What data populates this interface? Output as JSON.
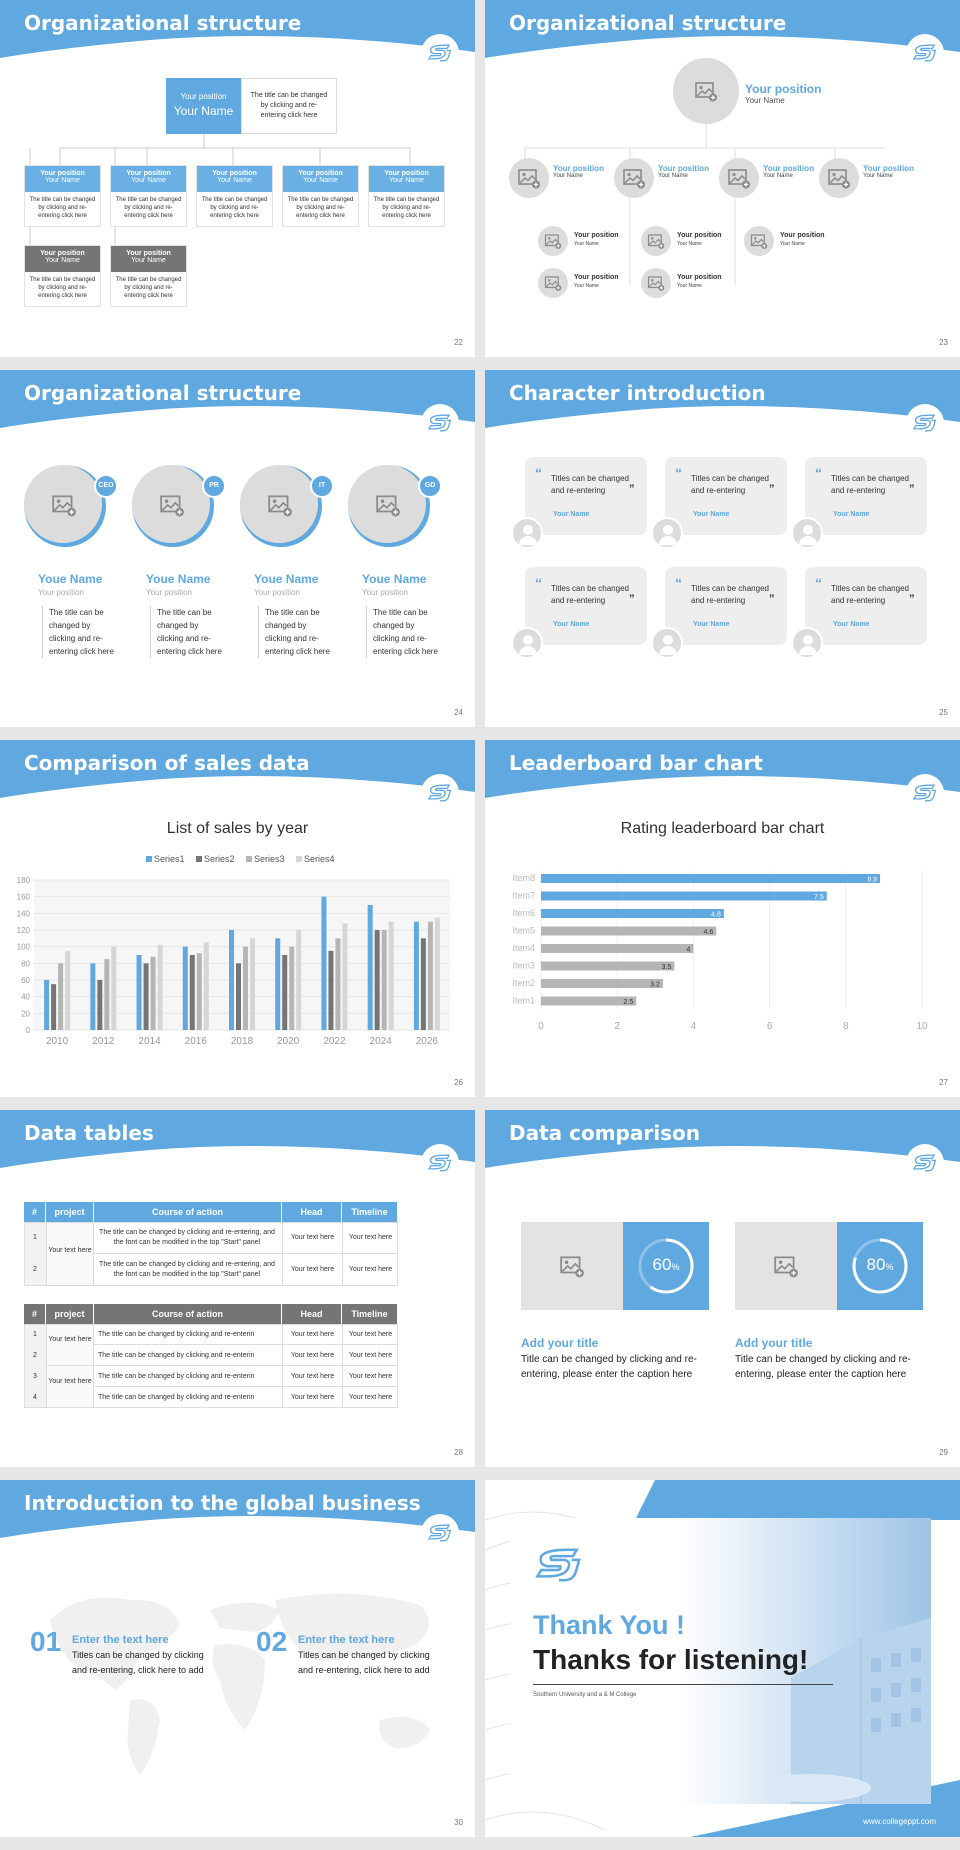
{
  "colors": {
    "accent": "#5fa8e0",
    "gray": "#757575",
    "lightgray": "#dcdcdc"
  },
  "s22": {
    "title": "Organizational structure",
    "num": "22",
    "top": {
      "pos": "Your position",
      "name": "Your Name",
      "desc": "The title can be changed by clicking and re-entering click here"
    },
    "boxes": [
      {
        "pos": "Your position",
        "name": "Your Name",
        "desc": "The title can be changed by clicking and re-entering click here"
      },
      {
        "pos": "Your position",
        "name": "Your Name",
        "desc": "The title can be changed by clicking and re-entering click here"
      },
      {
        "pos": "Your position",
        "name": "Your Name",
        "desc": "The title can be changed by clicking and re-entering click here"
      },
      {
        "pos": "Your position",
        "name": "Your Name",
        "desc": "The title can be changed by clicking and re-entering click here"
      },
      {
        "pos": "Your position",
        "name": "Your Name",
        "desc": "The title can be changed by clicking and re-entering click here"
      },
      {
        "pos": "Your position",
        "name": "Your Name",
        "desc": "The title can be changed by clicking and re-entering click here"
      },
      {
        "pos": "Your position",
        "name": "Your Name",
        "desc": "The title can be changed by clicking and re-entering click here"
      }
    ]
  },
  "s23": {
    "title": "Organizational structure",
    "num": "23",
    "top": {
      "pos": "Your position",
      "name": "Your Name"
    },
    "mid": [
      {
        "pos": "Your position",
        "name": "Your Name"
      },
      {
        "pos": "Your position",
        "name": "Your Name"
      },
      {
        "pos": "Your position",
        "name": "Your Name"
      },
      {
        "pos": "Your position",
        "name": "Your Name"
      }
    ],
    "sub": [
      {
        "pos": "Your position",
        "name": "Your Name"
      },
      {
        "pos": "Your position",
        "name": "Your Name"
      },
      {
        "pos": "Your position",
        "name": "Your Name"
      },
      {
        "pos": "Your position",
        "name": "Your Name"
      },
      {
        "pos": "Your position",
        "name": "Your Name"
      }
    ]
  },
  "s24": {
    "title": "Organizational structure",
    "num": "24",
    "people": [
      {
        "badge": "CEO",
        "name": "Youe Name",
        "pos": "Your position",
        "desc": "The title can be changed by clicking and re-entering click here"
      },
      {
        "badge": "PR",
        "name": "Youe Name",
        "pos": "Your position",
        "desc": "The title can be changed by clicking and re-entering click here"
      },
      {
        "badge": "IT",
        "name": "Youe Name",
        "pos": "Your position",
        "desc": "The title can be changed by clicking and re-entering click here"
      },
      {
        "badge": "GD",
        "name": "Youe Name",
        "pos": "Your position",
        "desc": "The title can be changed by clicking and re-entering click here"
      }
    ]
  },
  "s25": {
    "title": "Character introduction",
    "num": "25",
    "cards": [
      {
        "text": "Titles can be changed and re-entering",
        "name": "Your Name"
      },
      {
        "text": "Titles can be changed and re-entering",
        "name": "Your Name"
      },
      {
        "text": "Titles can be changed and re-entering",
        "name": "Your Name"
      },
      {
        "text": "Titles can be changed and re-entering",
        "name": "Your Name"
      },
      {
        "text": "Titles can be changed and re-entering",
        "name": "Your Name"
      },
      {
        "text": "Titles can be changed and re-entering",
        "name": "Your Name"
      }
    ]
  },
  "s26": {
    "title": "Comparison of sales data",
    "num": "26"
  },
  "s27": {
    "title": "Leaderboard bar chart",
    "num": "27"
  },
  "chart_data": [
    {
      "type": "bar",
      "title": "List of sales by year",
      "categories": [
        "2010",
        "2012",
        "2014",
        "2016",
        "2018",
        "2020",
        "2022",
        "2024",
        "2026"
      ],
      "series": [
        {
          "name": "Series1",
          "color": "#5fa8e0",
          "values": [
            60,
            80,
            90,
            100,
            120,
            110,
            160,
            150,
            130
          ]
        },
        {
          "name": "Series2",
          "color": "#757575",
          "values": [
            55,
            60,
            80,
            90,
            80,
            90,
            95,
            120,
            110
          ]
        },
        {
          "name": "Series3",
          "color": "#b5b5b5",
          "values": [
            80,
            85,
            88,
            92,
            100,
            100,
            110,
            120,
            130
          ]
        },
        {
          "name": "Series4",
          "color": "#d6d6d6",
          "values": [
            95,
            100,
            102,
            105,
            110,
            120,
            128,
            130,
            135
          ]
        }
      ],
      "yticks": [
        0,
        20,
        40,
        60,
        80,
        100,
        120,
        140,
        160,
        180
      ],
      "ylim": [
        0,
        180
      ],
      "legend": "top"
    },
    {
      "type": "bar",
      "orientation": "horizontal",
      "title": "Rating leaderboard bar chart",
      "categories": [
        "Item8",
        "Item7",
        "Item6",
        "Item5",
        "Item4",
        "Item3",
        "Item2",
        "Item1"
      ],
      "values": [
        8.9,
        7.5,
        4.8,
        4.6,
        4,
        3.5,
        3.2,
        2.5
      ],
      "colors": [
        "#5fa8e0",
        "#5fa8e0",
        "#5fa8e0",
        "#b5b5b5",
        "#b5b5b5",
        "#b5b5b5",
        "#b5b5b5",
        "#b5b5b5"
      ],
      "xticks": [
        0,
        2,
        4,
        6,
        8,
        10
      ],
      "xlim": [
        0,
        10
      ]
    }
  ],
  "s28": {
    "title": "Data tables",
    "num": "28",
    "t1": {
      "headers": [
        "#",
        "project",
        "Course of action",
        "Head",
        "Timeline"
      ],
      "project": "Your text here",
      "rows": [
        {
          "n": "1",
          "c": "The title can be changed by clicking and re-entering, and the font can be modified in the top \"Start\" panel",
          "h": "Your text here",
          "t": "Your text here"
        },
        {
          "n": "2",
          "c": "The title can be changed by clicking and re-entering, and the font can be modified in the top \"Start\" panel",
          "h": "Your text here",
          "t": "Your text here"
        }
      ]
    },
    "t2": {
      "headers": [
        "#",
        "project",
        "Course of action",
        "Head",
        "Timeline"
      ],
      "projects": [
        "Your text here",
        "Your text here"
      ],
      "rows": [
        {
          "n": "1",
          "c": "The title can be changed by clicking and re-enterin",
          "h": "Your text here",
          "t": "Your text here"
        },
        {
          "n": "2",
          "c": "The title can be changed by clicking and re-enterin",
          "h": "Your text here",
          "t": "Your text here"
        },
        {
          "n": "3",
          "c": "The title can be changed by clicking and re-enterin",
          "h": "Your text here",
          "t": "Your text here"
        },
        {
          "n": "4",
          "c": "The title can be changed by clicking and re-enterin",
          "h": "Your text here",
          "t": "Your text here"
        }
      ]
    }
  },
  "s29": {
    "title": "Data comparison",
    "num": "29",
    "items": [
      {
        "pct": 60,
        "value": "60",
        "unit": "%",
        "title": "Add your title",
        "desc": "Title can be changed by clicking and re-entering, please enter the caption here"
      },
      {
        "pct": 80,
        "value": "80",
        "unit": "%",
        "title": "Add your title",
        "desc": "Title can be changed by clicking and re-entering, please enter the caption here"
      }
    ]
  },
  "s30": {
    "title": "Introduction to the global business",
    "num": "30",
    "items": [
      {
        "n": "01",
        "title": "Enter the text here",
        "desc": "Titles can be changed by clicking and re-entering, click here to add"
      },
      {
        "n": "02",
        "title": "Enter the text here",
        "desc": "Titles can be changed by clicking and re-entering, click here to add"
      }
    ]
  },
  "s31": {
    "thanks": "Thank You !",
    "listen": "Thanks for listening!",
    "college": "Southern University and a & M College",
    "url": "www.collegeppt.com"
  }
}
